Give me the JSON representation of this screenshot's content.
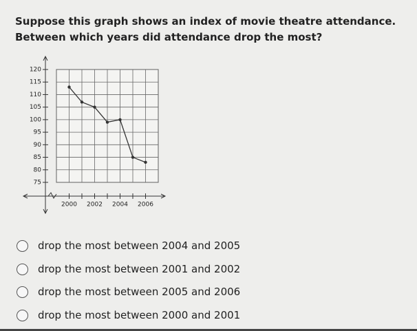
{
  "question": "Suppose this graph shows an index of movie theatre attendance. Between which years did attendance drop the most?",
  "chart_data": {
    "type": "line",
    "x": [
      2000,
      2001,
      2002,
      2003,
      2004,
      2005,
      2006
    ],
    "values": [
      113,
      107,
      105,
      99,
      100,
      85,
      83
    ],
    "color": "#333333",
    "xlim": [
      1999,
      2007
    ],
    "xticks": [
      2000,
      2002,
      2004,
      2006
    ],
    "ylim": [
      75,
      120
    ],
    "yticks": [
      75,
      80,
      85,
      90,
      95,
      100,
      105,
      110,
      115,
      120
    ],
    "grid": true
  },
  "options": [
    "drop the most between 2004 and 2005",
    "drop the most between 2001 and 2002",
    "drop the most between 2005 and 2006",
    "drop the most between 2000 and 2001"
  ]
}
